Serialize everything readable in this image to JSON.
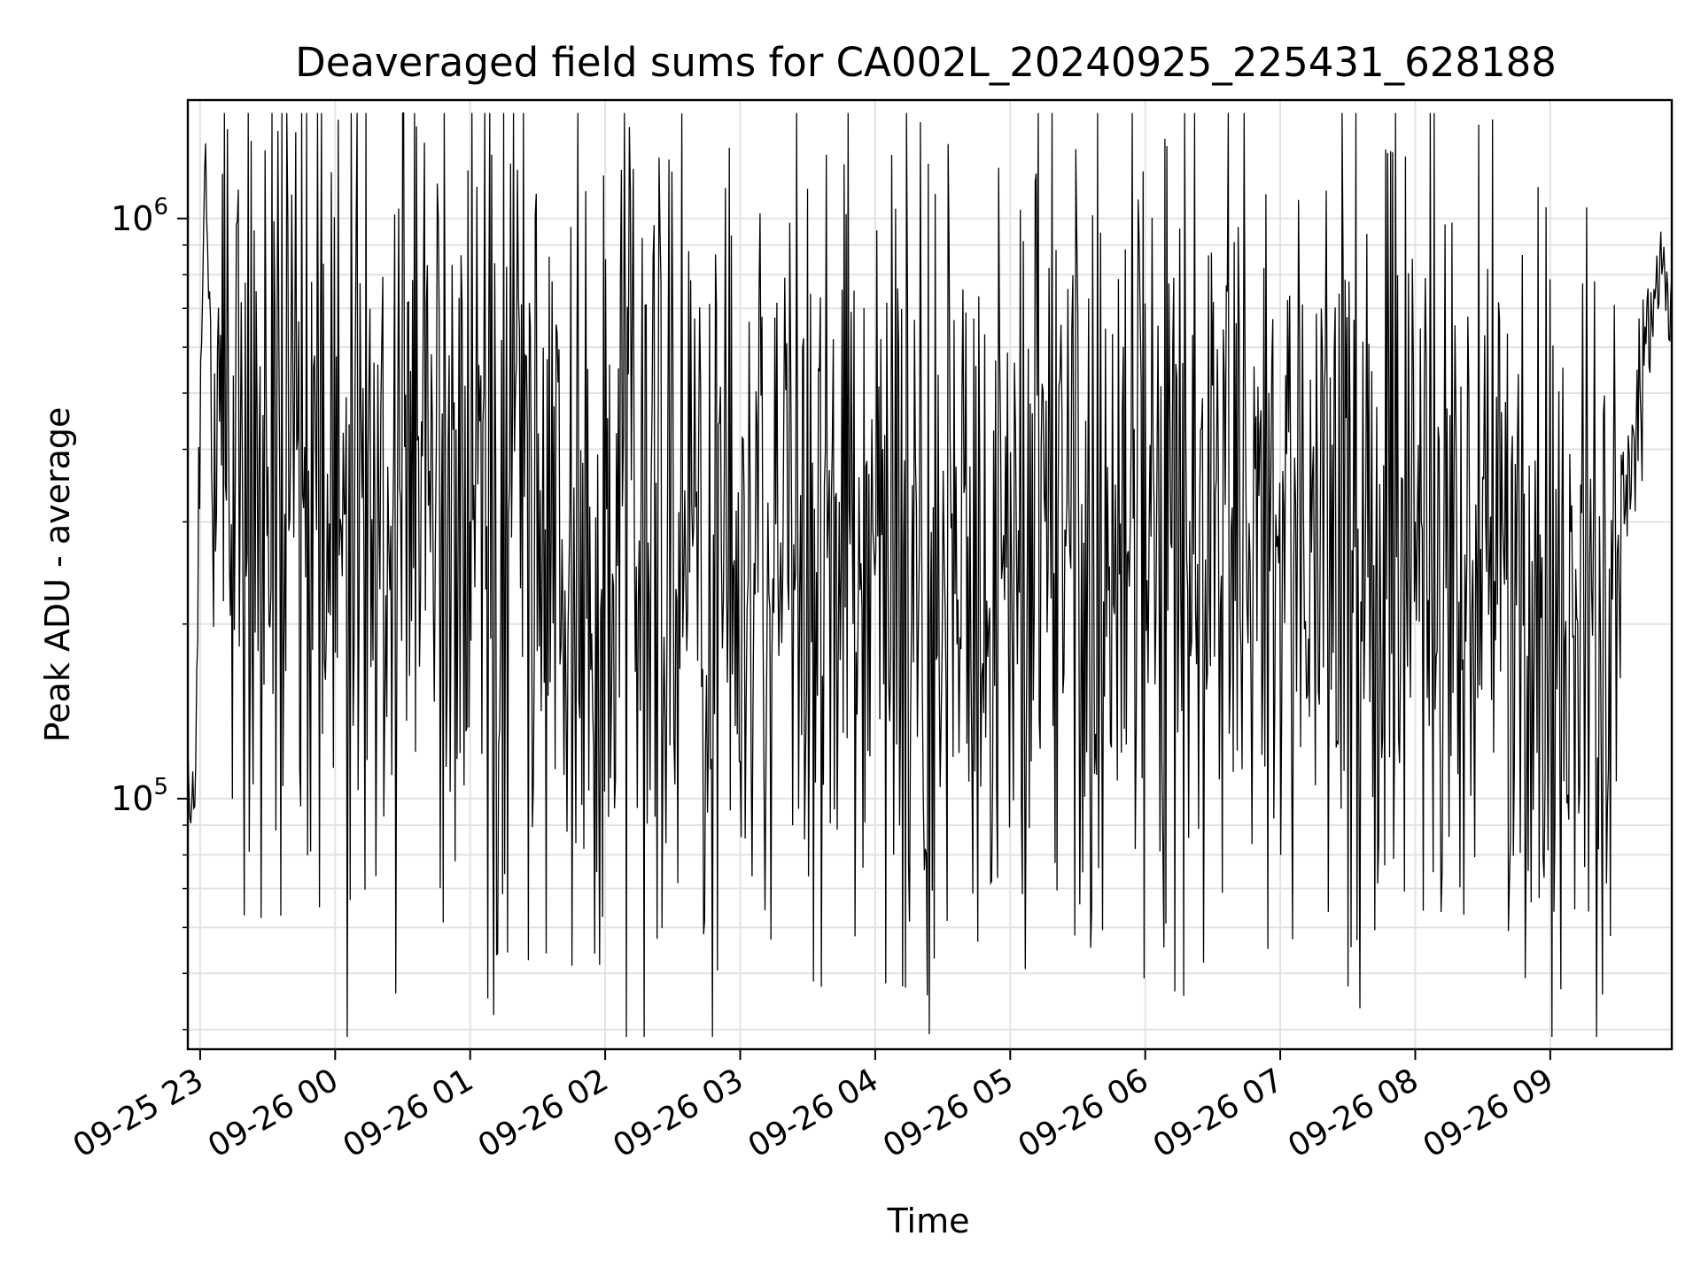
{
  "chart_data": {
    "type": "line",
    "title": "Deaveraged field sums for CA002L_20240925_225431_628188",
    "xlabel": "Time",
    "ylabel": "Peak ADU - average",
    "yscale": "log",
    "ylim": [
      37000,
      1600000
    ],
    "xlim": [
      "2024-09-25 22:54:31",
      "2024-09-26 09:54:00"
    ],
    "grid": true,
    "line_color": "#000000",
    "x_ticks": [
      {
        "t": "2024-09-25 23:00",
        "label": "09-25 23"
      },
      {
        "t": "2024-09-26 00:00",
        "label": "09-26 00"
      },
      {
        "t": "2024-09-26 01:00",
        "label": "09-26 01"
      },
      {
        "t": "2024-09-26 02:00",
        "label": "09-26 02"
      },
      {
        "t": "2024-09-26 03:00",
        "label": "09-26 03"
      },
      {
        "t": "2024-09-26 04:00",
        "label": "09-26 04"
      },
      {
        "t": "2024-09-26 05:00",
        "label": "09-26 05"
      },
      {
        "t": "2024-09-26 06:00",
        "label": "09-26 06"
      },
      {
        "t": "2024-09-26 07:00",
        "label": "09-26 07"
      },
      {
        "t": "2024-09-26 08:00",
        "label": "09-26 08"
      },
      {
        "t": "2024-09-26 09:00",
        "label": "09-26 09"
      }
    ],
    "y_ticks": [
      {
        "value": 100000,
        "base": "10",
        "exp": "5"
      },
      {
        "value": 1000000,
        "base": "10",
        "exp": "6"
      }
    ],
    "series": [
      {
        "style": "dense noisy line, ~1500 samples, values mostly 1e5–1e6",
        "x": [
          "2024-09-25 22:54:31",
          "2024-09-25 22:56",
          "2024-09-25 22:58",
          "2024-09-25 23:00",
          "2024-09-25 23:02",
          "2024-09-25 23:04",
          "2024-09-25 23:06",
          "2024-09-25 23:08",
          "2024-09-25 23:10",
          "2024-09-25 23:13",
          "2024-09-25 23:16",
          "2024-09-25 23:20",
          "2024-09-25 23:25",
          "2024-09-25 23:30",
          "2024-09-25 23:45",
          "2024-09-26 00:00",
          "2024-09-26 00:30",
          "2024-09-26 01:00",
          "2024-09-26 02:00",
          "2024-09-26 03:00",
          "2024-09-26 04:00",
          "2024-09-26 05:00",
          "2024-09-26 06:00",
          "2024-09-26 07:00",
          "2024-09-26 08:00",
          "2024-09-26 09:00",
          "2024-09-26 09:20",
          "2024-09-26 09:25",
          "2024-09-26 09:35",
          "2024-09-26 09:45",
          "2024-09-26 09:50",
          "2024-09-26 09:54"
        ],
        "mean": [
          120000,
          90000,
          110000,
          500000,
          1200000,
          800000,
          450000,
          500000,
          350000,
          450000,
          420000,
          380000,
          350000,
          340000,
          330000,
          320000,
          320000,
          300000,
          280000,
          260000,
          260000,
          260000,
          270000,
          280000,
          260000,
          250000,
          220000,
          180000,
          400000,
          700000,
          850000,
          700000
        ],
        "spread": [
          0.08,
          0.08,
          0.1,
          0.2,
          0.05,
          0.2,
          0.7,
          0.7,
          0.7,
          0.85,
          0.85,
          0.85,
          0.85,
          0.85,
          0.85,
          0.85,
          0.85,
          0.85,
          0.85,
          0.85,
          0.85,
          0.85,
          0.85,
          0.85,
          0.85,
          0.85,
          0.8,
          0.7,
          0.25,
          0.15,
          0.1,
          0.1
        ]
      }
    ]
  }
}
